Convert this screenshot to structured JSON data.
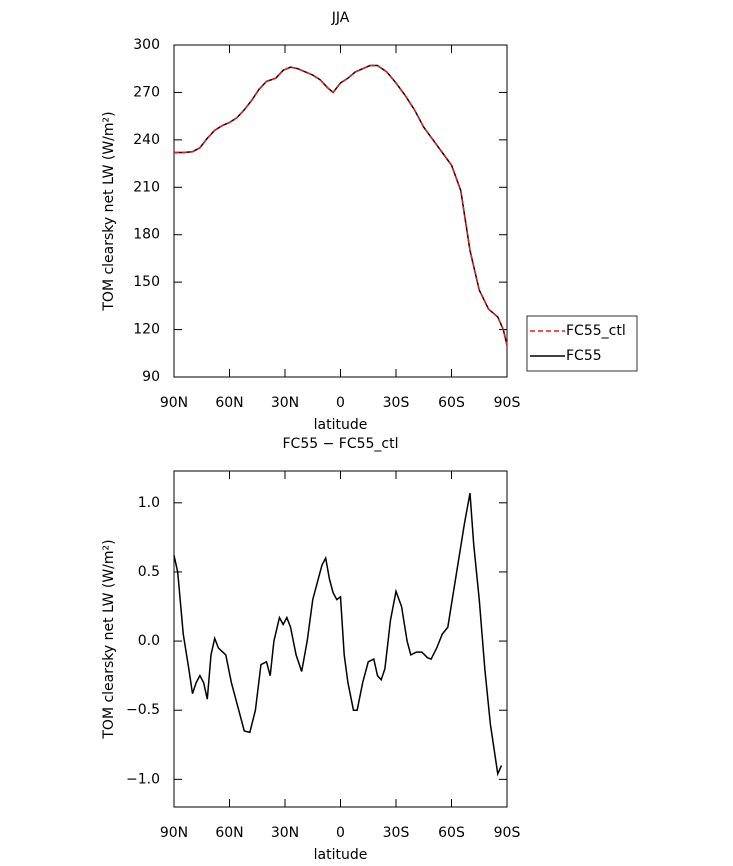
{
  "chart_data": [
    {
      "type": "line",
      "title": "JJA",
      "xlabel": "latitude",
      "ylabel": "TOM clearsky net LW (W/m²)",
      "x": [
        90,
        85,
        80,
        76,
        72,
        68,
        64,
        60,
        56,
        52,
        48,
        44,
        40,
        35,
        31,
        27,
        23,
        19,
        15,
        11,
        7,
        4,
        0,
        -4,
        -8,
        -12,
        -16,
        -20,
        -25,
        -30,
        -35,
        -40,
        -45,
        -50,
        -55,
        -60,
        -65,
        -70,
        -75,
        -80,
        -85,
        -88,
        -90
      ],
      "series": [
        {
          "name": "FC55_ctl",
          "color": "#e31a1c",
          "dash": true,
          "values": [
            232,
            232,
            232.5,
            235,
            241,
            246,
            249,
            251,
            254,
            259,
            265,
            272,
            277,
            279,
            284,
            286,
            285,
            283,
            281,
            278,
            273,
            270,
            276,
            279,
            283,
            285,
            287,
            287,
            283,
            276,
            268,
            259,
            248,
            240,
            232,
            224,
            208,
            170,
            145,
            133,
            128,
            120,
            110
          ]
        },
        {
          "name": "FC55",
          "color": "#000000",
          "dash": false,
          "values": [
            232,
            232,
            232.5,
            235,
            241,
            246,
            249,
            251,
            254,
            259,
            265,
            272,
            277,
            279,
            284,
            286,
            285,
            283,
            281,
            278,
            273,
            270,
            276,
            279,
            283,
            285,
            287,
            287,
            283,
            276,
            268,
            259,
            248,
            240,
            232,
            224,
            208,
            170,
            145,
            133,
            128,
            120,
            110
          ]
        }
      ],
      "xlim": [
        90,
        -90
      ],
      "xticks": [
        {
          "value": 90,
          "label": "90N"
        },
        {
          "value": 60,
          "label": "60N"
        },
        {
          "value": 30,
          "label": "30N"
        },
        0,
        {
          "value": -30,
          "label": "30S"
        },
        {
          "value": -60,
          "label": "60S"
        },
        {
          "value": -90,
          "label": "90S"
        }
      ],
      "ylim": [
        90,
        300
      ],
      "yticks": [
        90,
        120,
        150,
        180,
        210,
        240,
        270,
        300
      ],
      "legend": "right"
    },
    {
      "type": "line",
      "title": "FC55 − FC55_ctl",
      "xlabel": "latitude",
      "ylabel": "TOM clearsky net LW (W/m²)",
      "x": [
        90,
        88,
        85,
        82,
        80,
        78,
        76,
        74,
        72,
        70,
        68,
        66,
        62,
        59,
        55,
        52,
        49,
        46,
        43,
        40,
        38,
        36,
        33,
        31,
        29,
        27,
        24,
        21,
        18,
        15,
        12,
        10,
        8,
        6,
        4,
        2,
        0,
        -2,
        -4,
        -7,
        -9,
        -12,
        -15,
        -18,
        -20,
        -22,
        -24,
        -27,
        -30,
        -33,
        -36,
        -38,
        -41,
        -44,
        -47,
        -49,
        -52,
        -55,
        -58,
        -61,
        -64,
        -67,
        -70,
        -72,
        -75,
        -78,
        -81,
        -85,
        -87
      ],
      "series": [
        {
          "color": "#000000",
          "dash": false,
          "values": [
            0.62,
            0.5,
            0.05,
            -0.2,
            -0.38,
            -0.3,
            -0.25,
            -0.3,
            -0.42,
            -0.1,
            0.02,
            -0.05,
            -0.1,
            -0.3,
            -0.5,
            -0.65,
            -0.66,
            -0.5,
            -0.17,
            -0.15,
            -0.25,
            0.0,
            0.17,
            0.12,
            0.17,
            0.1,
            -0.1,
            -0.22,
            0.0,
            0.3,
            0.45,
            0.55,
            0.6,
            0.45,
            0.35,
            0.3,
            0.32,
            -0.1,
            -0.3,
            -0.5,
            -0.5,
            -0.3,
            -0.15,
            -0.13,
            -0.25,
            -0.28,
            -0.2,
            0.15,
            0.36,
            0.25,
            0.0,
            -0.1,
            -0.08,
            -0.08,
            -0.12,
            -0.13,
            -0.05,
            0.05,
            0.1,
            0.35,
            0.6,
            0.85,
            1.07,
            0.7,
            0.3,
            -0.2,
            -0.6,
            -0.96,
            -0.9
          ]
        }
      ],
      "xlim": [
        90,
        -90
      ],
      "xticks": [
        {
          "value": 90,
          "label": "90N"
        },
        {
          "value": 60,
          "label": "60N"
        },
        {
          "value": 30,
          "label": "30N"
        },
        0,
        {
          "value": -30,
          "label": "30S"
        },
        {
          "value": -60,
          "label": "60S"
        },
        {
          "value": -90,
          "label": "90S"
        }
      ],
      "ylim": [
        -1.2,
        1.23
      ],
      "yticks": [
        {
          "value": -1.0,
          "label": "−1.0"
        },
        {
          "value": -0.5,
          "label": "−0.5"
        },
        {
          "value": 0.0,
          "label": "0.0"
        },
        0.5,
        {
          "value": 1.0,
          "label": "1.0"
        }
      ]
    }
  ]
}
